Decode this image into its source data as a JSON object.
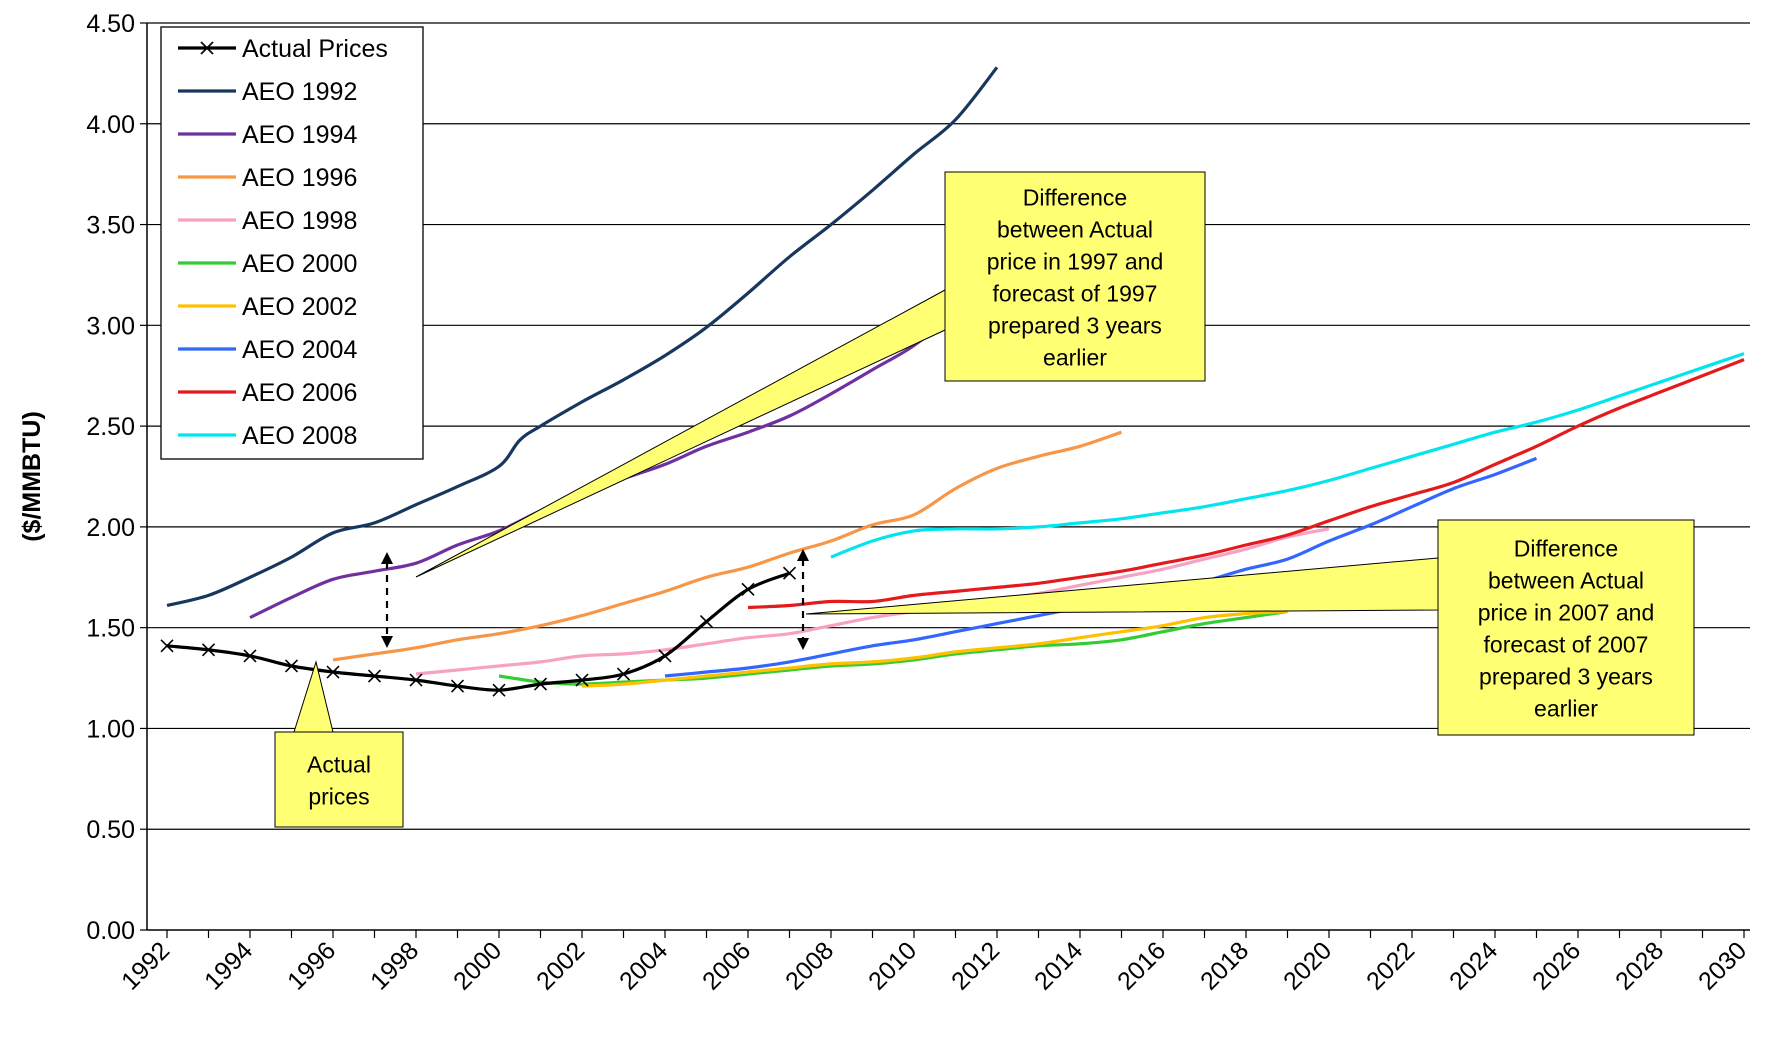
{
  "chart_data": {
    "type": "line",
    "title": "",
    "xlabel": "",
    "ylabel": "($/MMBTU)",
    "xlim": [
      1992,
      2030
    ],
    "ylim": [
      0,
      4.5
    ],
    "grid": "horizontal",
    "legend_position": "top-left",
    "x_ticks": [
      "1992",
      "1994",
      "1996",
      "1998",
      "2000",
      "2002",
      "2004",
      "2006",
      "2008",
      "2010",
      "2012",
      "2014",
      "2016",
      "2018",
      "2020",
      "2022",
      "2024",
      "2026",
      "2028",
      "2030"
    ],
    "y_ticks": [
      "0.00",
      "0.50",
      "1.00",
      "1.50",
      "2.00",
      "2.50",
      "3.00",
      "3.50",
      "4.00",
      "4.50"
    ],
    "series": [
      {
        "name": "Actual Prices",
        "color": "#000000",
        "marker": "x",
        "points": [
          [
            1992,
            1.41
          ],
          [
            1993,
            1.39
          ],
          [
            1994,
            1.36
          ],
          [
            1995,
            1.31
          ],
          [
            1996,
            1.28
          ],
          [
            1997,
            1.26
          ],
          [
            1998,
            1.24
          ],
          [
            1999,
            1.21
          ],
          [
            2000,
            1.19
          ],
          [
            2001,
            1.22
          ],
          [
            2002,
            1.24
          ],
          [
            2003,
            1.27
          ],
          [
            2004,
            1.36
          ],
          [
            2005,
            1.53
          ],
          [
            2006,
            1.69
          ],
          [
            2007,
            1.77
          ]
        ]
      },
      {
        "name": "AEO 1992",
        "color": "#17375e",
        "points": [
          [
            1992,
            1.61
          ],
          [
            1993,
            1.66
          ],
          [
            1994,
            1.75
          ],
          [
            1995,
            1.85
          ],
          [
            1996,
            1.97
          ],
          [
            1997,
            2.02
          ],
          [
            1998,
            2.11
          ],
          [
            1999,
            2.2
          ],
          [
            2000,
            2.3
          ],
          [
            2000.5,
            2.43
          ],
          [
            2001,
            2.5
          ],
          [
            2002,
            2.62
          ],
          [
            2003,
            2.73
          ],
          [
            2004,
            2.85
          ],
          [
            2005,
            2.99
          ],
          [
            2006,
            3.16
          ],
          [
            2007,
            3.34
          ],
          [
            2008,
            3.5
          ],
          [
            2009,
            3.67
          ],
          [
            2010,
            3.85
          ],
          [
            2011,
            4.02
          ],
          [
            2012,
            4.28
          ]
        ]
      },
      {
        "name": "AEO 1994",
        "color": "#7030a0",
        "points": [
          [
            1994,
            1.55
          ],
          [
            1995,
            1.65
          ],
          [
            1996,
            1.74
          ],
          [
            1997,
            1.78
          ],
          [
            1998,
            1.82
          ],
          [
            1999,
            1.91
          ],
          [
            2000,
            1.98
          ],
          [
            2001,
            2.08
          ],
          [
            2002,
            2.17
          ],
          [
            2003,
            2.24
          ],
          [
            2004,
            2.31
          ],
          [
            2005,
            2.4
          ],
          [
            2006,
            2.47
          ],
          [
            2007,
            2.55
          ],
          [
            2008,
            2.66
          ],
          [
            2009,
            2.78
          ],
          [
            2010,
            2.9
          ],
          [
            2011,
            3.07
          ],
          [
            2012,
            3.3
          ]
        ]
      },
      {
        "name": "AEO 1996",
        "color": "#f79646",
        "points": [
          [
            1996,
            1.34
          ],
          [
            1997,
            1.37
          ],
          [
            1998,
            1.4
          ],
          [
            1999,
            1.44
          ],
          [
            2000,
            1.47
          ],
          [
            2001,
            1.51
          ],
          [
            2002,
            1.56
          ],
          [
            2003,
            1.62
          ],
          [
            2004,
            1.68
          ],
          [
            2005,
            1.75
          ],
          [
            2006,
            1.8
          ],
          [
            2007,
            1.87
          ],
          [
            2008,
            1.93
          ],
          [
            2009,
            2.01
          ],
          [
            2010,
            2.06
          ],
          [
            2011,
            2.19
          ],
          [
            2012,
            2.29
          ],
          [
            2013,
            2.35
          ],
          [
            2014,
            2.4
          ],
          [
            2015,
            2.47
          ]
        ]
      },
      {
        "name": "AEO 1998",
        "color": "#f7a1c4",
        "points": [
          [
            1998,
            1.27
          ],
          [
            1999,
            1.29
          ],
          [
            2000,
            1.31
          ],
          [
            2001,
            1.33
          ],
          [
            2002,
            1.36
          ],
          [
            2003,
            1.37
          ],
          [
            2004,
            1.39
          ],
          [
            2005,
            1.42
          ],
          [
            2006,
            1.45
          ],
          [
            2007,
            1.47
          ],
          [
            2008,
            1.51
          ],
          [
            2009,
            1.55
          ],
          [
            2010,
            1.58
          ],
          [
            2011,
            1.61
          ],
          [
            2012,
            1.64
          ],
          [
            2013,
            1.67
          ],
          [
            2014,
            1.71
          ],
          [
            2015,
            1.75
          ],
          [
            2016,
            1.79
          ],
          [
            2017,
            1.84
          ],
          [
            2018,
            1.89
          ],
          [
            2019,
            1.95
          ],
          [
            2020,
            1.99
          ]
        ]
      },
      {
        "name": "AEO 2000",
        "color": "#33cc33",
        "points": [
          [
            2000,
            1.26
          ],
          [
            2001,
            1.23
          ],
          [
            2002,
            1.22
          ],
          [
            2003,
            1.23
          ],
          [
            2004,
            1.24
          ],
          [
            2005,
            1.25
          ],
          [
            2006,
            1.27
          ],
          [
            2007,
            1.29
          ],
          [
            2008,
            1.31
          ],
          [
            2009,
            1.32
          ],
          [
            2010,
            1.34
          ],
          [
            2011,
            1.37
          ],
          [
            2012,
            1.39
          ],
          [
            2013,
            1.41
          ],
          [
            2014,
            1.42
          ],
          [
            2015,
            1.44
          ],
          [
            2016,
            1.48
          ],
          [
            2017,
            1.52
          ],
          [
            2018,
            1.55
          ],
          [
            2019,
            1.58
          ]
        ]
      },
      {
        "name": "AEO 2002",
        "color": "#ffc000",
        "points": [
          [
            2002,
            1.21
          ],
          [
            2003,
            1.22
          ],
          [
            2004,
            1.24
          ],
          [
            2005,
            1.26
          ],
          [
            2006,
            1.28
          ],
          [
            2007,
            1.3
          ],
          [
            2008,
            1.32
          ],
          [
            2009,
            1.33
          ],
          [
            2010,
            1.35
          ],
          [
            2011,
            1.38
          ],
          [
            2012,
            1.4
          ],
          [
            2013,
            1.42
          ],
          [
            2014,
            1.45
          ],
          [
            2015,
            1.48
          ],
          [
            2016,
            1.51
          ],
          [
            2017,
            1.55
          ],
          [
            2018,
            1.57
          ],
          [
            2019,
            1.58
          ]
        ]
      },
      {
        "name": "AEO 2004",
        "color": "#3366ff",
        "points": [
          [
            2004,
            1.26
          ],
          [
            2005,
            1.28
          ],
          [
            2006,
            1.3
          ],
          [
            2007,
            1.33
          ],
          [
            2008,
            1.37
          ],
          [
            2009,
            1.41
          ],
          [
            2010,
            1.44
          ],
          [
            2011,
            1.48
          ],
          [
            2012,
            1.52
          ],
          [
            2013,
            1.56
          ],
          [
            2014,
            1.6
          ],
          [
            2015,
            1.64
          ],
          [
            2016,
            1.68
          ],
          [
            2017,
            1.73
          ],
          [
            2018,
            1.79
          ],
          [
            2019,
            1.84
          ],
          [
            2020,
            1.93
          ],
          [
            2021,
            2.01
          ],
          [
            2022,
            2.1
          ],
          [
            2023,
            2.19
          ],
          [
            2024,
            2.26
          ],
          [
            2025,
            2.34
          ]
        ]
      },
      {
        "name": "AEO 2006",
        "color": "#e41a1c",
        "points": [
          [
            2006,
            1.6
          ],
          [
            2007,
            1.61
          ],
          [
            2008,
            1.63
          ],
          [
            2009,
            1.63
          ],
          [
            2010,
            1.66
          ],
          [
            2011,
            1.68
          ],
          [
            2012,
            1.7
          ],
          [
            2013,
            1.72
          ],
          [
            2014,
            1.75
          ],
          [
            2015,
            1.78
          ],
          [
            2016,
            1.82
          ],
          [
            2017,
            1.86
          ],
          [
            2018,
            1.91
          ],
          [
            2019,
            1.96
          ],
          [
            2020,
            2.03
          ],
          [
            2021,
            2.1
          ],
          [
            2022,
            2.16
          ],
          [
            2023,
            2.22
          ],
          [
            2024,
            2.31
          ],
          [
            2025,
            2.4
          ],
          [
            2026,
            2.5
          ],
          [
            2027,
            2.59
          ],
          [
            2028,
            2.67
          ],
          [
            2029,
            2.75
          ],
          [
            2030,
            2.83
          ]
        ]
      },
      {
        "name": "AEO 2008",
        "color": "#00e5ee",
        "points": [
          [
            2008,
            1.85
          ],
          [
            2009,
            1.93
          ],
          [
            2010,
            1.98
          ],
          [
            2011,
            1.99
          ],
          [
            2012,
            1.99
          ],
          [
            2013,
            2.0
          ],
          [
            2014,
            2.02
          ],
          [
            2015,
            2.04
          ],
          [
            2016,
            2.07
          ],
          [
            2017,
            2.1
          ],
          [
            2018,
            2.14
          ],
          [
            2019,
            2.18
          ],
          [
            2020,
            2.23
          ],
          [
            2021,
            2.29
          ],
          [
            2022,
            2.35
          ],
          [
            2023,
            2.41
          ],
          [
            2024,
            2.47
          ],
          [
            2025,
            2.52
          ],
          [
            2026,
            2.58
          ],
          [
            2027,
            2.65
          ],
          [
            2028,
            2.72
          ],
          [
            2029,
            2.79
          ],
          [
            2030,
            2.86
          ]
        ]
      }
    ],
    "annotations": [
      {
        "lines": [
          "Difference",
          "between Actual",
          "price in 1997 and",
          "forecast of 1997",
          "prepared 3 years",
          "earlier"
        ]
      },
      {
        "lines": [
          "Difference",
          "between Actual",
          "price in 2007 and",
          "forecast of 2007",
          "prepared 3 years",
          "earlier"
        ]
      },
      {
        "lines": [
          "Actual",
          "prices"
        ]
      }
    ]
  }
}
